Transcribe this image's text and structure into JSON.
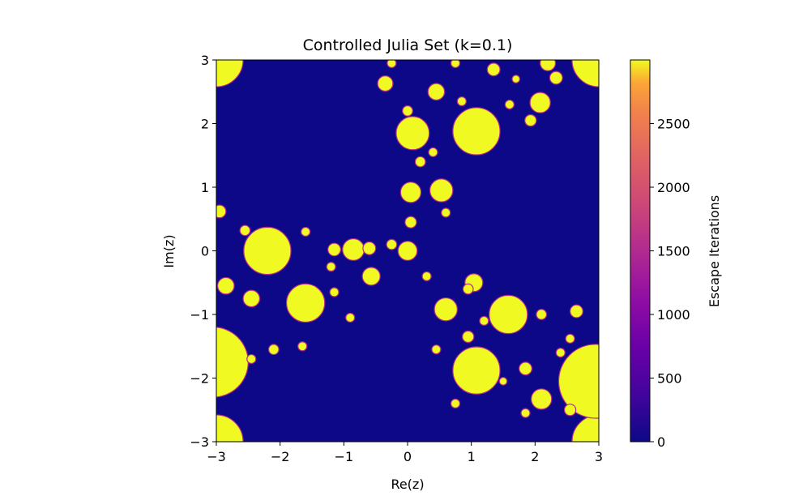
{
  "chart_data": {
    "type": "heatmap",
    "title": "Controlled Julia Set (k=0.1)",
    "xlabel": "Re(z)",
    "ylabel": "Im(z)",
    "xlim": [
      -3,
      3
    ],
    "ylim": [
      -3,
      3
    ],
    "x_ticks": [
      {
        "value": -3,
        "label": "−3"
      },
      {
        "value": -2,
        "label": "−2"
      },
      {
        "value": -1,
        "label": "−1"
      },
      {
        "value": 0,
        "label": "0"
      },
      {
        "value": 1,
        "label": "1"
      },
      {
        "value": 2,
        "label": "2"
      },
      {
        "value": 3,
        "label": "3"
      }
    ],
    "y_ticks": [
      {
        "value": 3,
        "label": "3"
      },
      {
        "value": 2,
        "label": "2"
      },
      {
        "value": 1,
        "label": "1"
      },
      {
        "value": 0,
        "label": "0"
      },
      {
        "value": -1,
        "label": "−1"
      },
      {
        "value": -2,
        "label": "−2"
      },
      {
        "value": -3,
        "label": "−3"
      }
    ],
    "colormap": "plasma",
    "background_value": 0,
    "colorbar": {
      "label": "Escape Iterations",
      "range": [
        0,
        3000
      ],
      "ticks": [
        {
          "value": 0,
          "label": "0"
        },
        {
          "value": 500,
          "label": "500"
        },
        {
          "value": 1000,
          "label": "1000"
        },
        {
          "value": 1500,
          "label": "1500"
        },
        {
          "value": 2000,
          "label": "2000"
        },
        {
          "value": 2500,
          "label": "2500"
        }
      ]
    },
    "colors": {
      "low": "#0d0887",
      "high": "#f0f921",
      "edge": "#b12a90"
    },
    "blobs": [
      {
        "x": -3.0,
        "y": 3.0,
        "r": 0.42
      },
      {
        "x": 3.0,
        "y": 3.0,
        "r": 0.42
      },
      {
        "x": -3.0,
        "y": -3.0,
        "r": 0.42
      },
      {
        "x": 3.0,
        "y": -3.0,
        "r": 0.42
      },
      {
        "x": -3.05,
        "y": -1.75,
        "r": 0.55
      },
      {
        "x": 2.95,
        "y": -2.05,
        "r": 0.58
      },
      {
        "x": -2.2,
        "y": 0.0,
        "r": 0.37
      },
      {
        "x": -1.6,
        "y": -0.82,
        "r": 0.3
      },
      {
        "x": 0.08,
        "y": 1.85,
        "r": 0.26
      },
      {
        "x": 1.08,
        "y": 1.88,
        "r": 0.37
      },
      {
        "x": 1.08,
        "y": -1.88,
        "r": 0.37
      },
      {
        "x": 1.58,
        "y": -1.0,
        "r": 0.3
      },
      {
        "x": 0.0,
        "y": 0.0,
        "r": 0.15
      },
      {
        "x": -0.85,
        "y": 0.02,
        "r": 0.17
      },
      {
        "x": 0.05,
        "y": 0.92,
        "r": 0.16
      },
      {
        "x": 0.53,
        "y": 0.95,
        "r": 0.18
      },
      {
        "x": 0.6,
        "y": -0.92,
        "r": 0.18
      },
      {
        "x": -0.57,
        "y": -0.4,
        "r": 0.14
      },
      {
        "x": 1.04,
        "y": -0.5,
        "r": 0.14
      },
      {
        "x": 2.08,
        "y": 2.33,
        "r": 0.16
      },
      {
        "x": 2.1,
        "y": -2.33,
        "r": 0.16
      },
      {
        "x": -0.35,
        "y": 2.63,
        "r": 0.12
      },
      {
        "x": 0.45,
        "y": 2.5,
        "r": 0.13
      },
      {
        "x": 1.35,
        "y": 2.85,
        "r": 0.1
      },
      {
        "x": 2.2,
        "y": 2.95,
        "r": 0.12
      },
      {
        "x": 2.33,
        "y": 2.72,
        "r": 0.1
      },
      {
        "x": 1.93,
        "y": 2.05,
        "r": 0.09
      },
      {
        "x": 0.2,
        "y": 1.4,
        "r": 0.08
      },
      {
        "x": 0.4,
        "y": 1.55,
        "r": 0.07
      },
      {
        "x": 0.05,
        "y": 0.45,
        "r": 0.09
      },
      {
        "x": 0.6,
        "y": 0.6,
        "r": 0.07
      },
      {
        "x": -0.6,
        "y": 0.04,
        "r": 0.1
      },
      {
        "x": -0.25,
        "y": 0.1,
        "r": 0.08
      },
      {
        "x": -1.15,
        "y": 0.02,
        "r": 0.1
      },
      {
        "x": -2.85,
        "y": -0.55,
        "r": 0.13
      },
      {
        "x": -2.55,
        "y": 0.32,
        "r": 0.08
      },
      {
        "x": -2.45,
        "y": -0.75,
        "r": 0.13
      },
      {
        "x": -2.95,
        "y": 0.62,
        "r": 0.1
      },
      {
        "x": -2.1,
        "y": -1.55,
        "r": 0.08
      },
      {
        "x": -1.65,
        "y": -1.5,
        "r": 0.07
      },
      {
        "x": -2.45,
        "y": -1.7,
        "r": 0.07
      },
      {
        "x": -1.15,
        "y": -0.65,
        "r": 0.07
      },
      {
        "x": -0.9,
        "y": -1.05,
        "r": 0.07
      },
      {
        "x": -1.6,
        "y": 0.3,
        "r": 0.07
      },
      {
        "x": -1.2,
        "y": -0.25,
        "r": 0.07
      },
      {
        "x": 0.95,
        "y": -0.6,
        "r": 0.08
      },
      {
        "x": 0.3,
        "y": -0.4,
        "r": 0.07
      },
      {
        "x": 0.95,
        "y": -1.35,
        "r": 0.09
      },
      {
        "x": 1.2,
        "y": -1.1,
        "r": 0.07
      },
      {
        "x": 1.85,
        "y": -1.85,
        "r": 0.1
      },
      {
        "x": 2.65,
        "y": -0.95,
        "r": 0.1
      },
      {
        "x": 2.1,
        "y": -1.0,
        "r": 0.08
      },
      {
        "x": 2.55,
        "y": -1.38,
        "r": 0.07
      },
      {
        "x": 2.4,
        "y": -1.6,
        "r": 0.07
      },
      {
        "x": 2.55,
        "y": -2.5,
        "r": 0.09
      },
      {
        "x": 0.0,
        "y": 2.2,
        "r": 0.08
      },
      {
        "x": -0.25,
        "y": 2.95,
        "r": 0.07
      },
      {
        "x": 0.75,
        "y": 2.95,
        "r": 0.07
      },
      {
        "x": 0.85,
        "y": 2.35,
        "r": 0.07
      },
      {
        "x": 1.6,
        "y": 2.3,
        "r": 0.07
      },
      {
        "x": 1.7,
        "y": 2.7,
        "r": 0.06
      },
      {
        "x": 1.85,
        "y": -2.55,
        "r": 0.07
      },
      {
        "x": 1.5,
        "y": -2.05,
        "r": 0.06
      },
      {
        "x": 0.75,
        "y": -2.4,
        "r": 0.07
      },
      {
        "x": 0.45,
        "y": -1.55,
        "r": 0.07
      }
    ]
  }
}
